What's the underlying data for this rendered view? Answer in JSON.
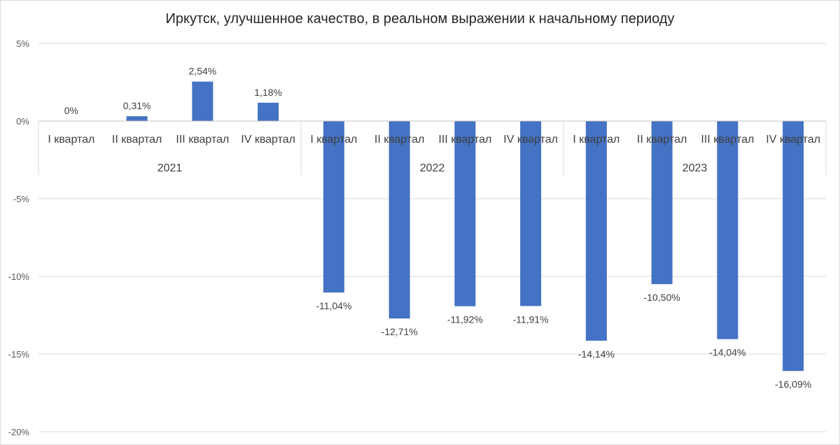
{
  "chart_data": {
    "type": "bar",
    "title": "Иркутск, улучшенное качество, в реальном выражении к начальному периоду",
    "groups": [
      {
        "label": "2021",
        "categories": [
          "I квартал",
          "II квартал",
          "III квартал",
          "IV квартал"
        ]
      },
      {
        "label": "2022",
        "categories": [
          "I квартал",
          "II квартал",
          "III квартал",
          "IV квартал"
        ]
      },
      {
        "label": "2023",
        "categories": [
          "I квартал",
          "II квартал",
          "III квартал",
          "IV квартал"
        ]
      }
    ],
    "values": [
      0,
      0.31,
      2.54,
      1.18,
      -11.04,
      -12.71,
      -11.92,
      -11.91,
      -14.14,
      -10.5,
      -14.04,
      -16.09
    ],
    "data_labels": [
      "0%",
      "0,31%",
      "2,54%",
      "1,18%",
      "-11,04%",
      "-12,71%",
      "-11,92%",
      "-11,91%",
      "-14,14%",
      "-10,50%",
      "-14,04%",
      "-16,09%"
    ],
    "ylim": [
      -20,
      5
    ],
    "yticks": [
      5,
      0,
      -5,
      -10,
      -15,
      -20
    ],
    "ytick_labels": [
      "5%",
      "0%",
      "-5%",
      "-10%",
      "-15%",
      "-20%"
    ],
    "bar_color": "#4472c4",
    "grid": true,
    "legend": "none"
  }
}
